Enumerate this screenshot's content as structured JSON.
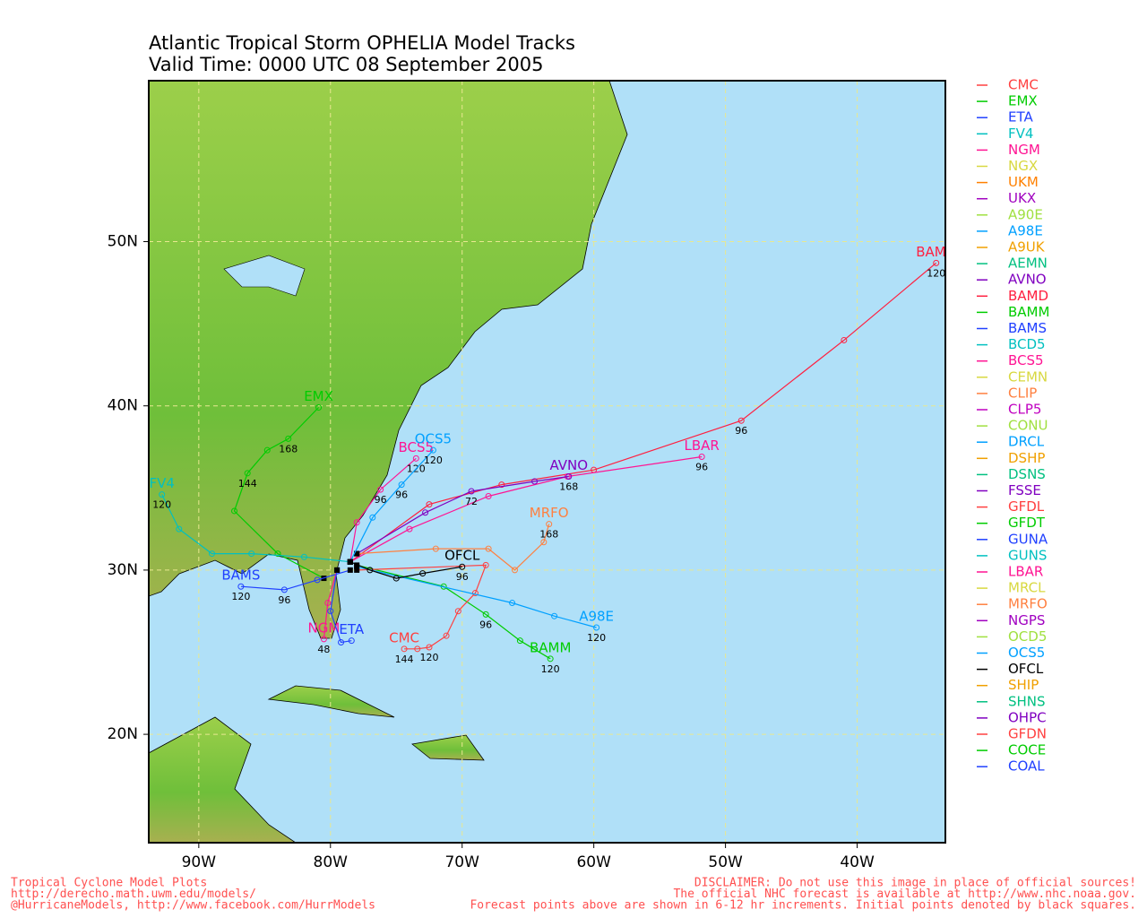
{
  "map": {
    "title": "Atlantic Tropical Storm OPHELIA Model Tracks",
    "subtitle": "Valid Time: 0000 UTC 08 September 2005",
    "xlim": [
      -93.8,
      -33.3
    ],
    "ylim": [
      13.4,
      59.8
    ],
    "xticks": [
      {
        "value": -90,
        "label": "90W"
      },
      {
        "value": -80,
        "label": "80W"
      },
      {
        "value": -70,
        "label": "70W"
      },
      {
        "value": -60,
        "label": "60W"
      },
      {
        "value": -50,
        "label": "50W"
      },
      {
        "value": -40,
        "label": "40W"
      }
    ],
    "yticks": [
      {
        "value": 20,
        "label": "20N"
      },
      {
        "value": 30,
        "label": "30N"
      },
      {
        "value": 40,
        "label": "40N"
      },
      {
        "value": 50,
        "label": "50N"
      }
    ],
    "grid": true,
    "legend": [
      {
        "name": "CMC",
        "color": "#ff4040"
      },
      {
        "name": "EMX",
        "color": "#00cc00"
      },
      {
        "name": "ETA",
        "color": "#2040ff"
      },
      {
        "name": "FV4",
        "color": "#00c0c0"
      },
      {
        "name": "NGM",
        "color": "#ff1493"
      },
      {
        "name": "NGX",
        "color": "#d8d840"
      },
      {
        "name": "UKM",
        "color": "#ff8000"
      },
      {
        "name": "UKX",
        "color": "#a000c0"
      },
      {
        "name": "A90E",
        "color": "#a0e040"
      },
      {
        "name": "A98E",
        "color": "#00a0ff"
      },
      {
        "name": "A9UK",
        "color": "#f0a000"
      },
      {
        "name": "AEMN",
        "color": "#00c080"
      },
      {
        "name": "AVNO",
        "color": "#8000c0"
      },
      {
        "name": "BAMD",
        "color": "#ff2040"
      },
      {
        "name": "BAMM",
        "color": "#00cc00"
      },
      {
        "name": "BAMS",
        "color": "#2040ff"
      },
      {
        "name": "BCD5",
        "color": "#00c0c0"
      },
      {
        "name": "BCS5",
        "color": "#ff1493"
      },
      {
        "name": "CEMN",
        "color": "#d8d840"
      },
      {
        "name": "CLIP",
        "color": "#ff8040"
      },
      {
        "name": "CLP5",
        "color": "#c000c0"
      },
      {
        "name": "CONU",
        "color": "#a0e040"
      },
      {
        "name": "DRCL",
        "color": "#00a0ff"
      },
      {
        "name": "DSHP",
        "color": "#f0a000"
      },
      {
        "name": "DSNS",
        "color": "#00c080"
      },
      {
        "name": "FSSE",
        "color": "#8000c0"
      },
      {
        "name": "GFDL",
        "color": "#ff4040"
      },
      {
        "name": "GFDT",
        "color": "#00cc00"
      },
      {
        "name": "GUNA",
        "color": "#2040ff"
      },
      {
        "name": "GUNS",
        "color": "#00c0c0"
      },
      {
        "name": "LBAR",
        "color": "#ff1493"
      },
      {
        "name": "MRCL",
        "color": "#d8d840"
      },
      {
        "name": "MRFO",
        "color": "#ff8040"
      },
      {
        "name": "NGPS",
        "color": "#a000c0"
      },
      {
        "name": "OCD5",
        "color": "#a0e040"
      },
      {
        "name": "OCS5",
        "color": "#00a0ff"
      },
      {
        "name": "OFCL",
        "color": "#000000"
      },
      {
        "name": "SHIP",
        "color": "#f0a000"
      },
      {
        "name": "SHNS",
        "color": "#00c080"
      },
      {
        "name": "OHPC",
        "color": "#8000c0"
      },
      {
        "name": "GFDN",
        "color": "#ff4040"
      },
      {
        "name": "COCE",
        "color": "#00cc00"
      },
      {
        "name": "COAL",
        "color": "#2040ff"
      }
    ],
    "tracks": [
      {
        "name": "BAMD",
        "color": "#ff2040",
        "lon": [
          -78.5,
          -72.5,
          -67,
          -60,
          -48.8,
          -41,
          -34
        ],
        "lat": [
          30.5,
          34,
          35.2,
          36.1,
          39.1,
          44,
          48.7
        ],
        "hours": [
          null,
          null,
          null,
          null,
          96,
          null,
          120
        ]
      },
      {
        "name": "LBAR",
        "color": "#ff1493",
        "lon": [
          -78.5,
          -74,
          -68,
          -62,
          -51.8
        ],
        "lat": [
          30.5,
          32.5,
          34.5,
          35.7,
          36.9
        ],
        "hours": [
          null,
          null,
          null,
          null,
          96
        ]
      },
      {
        "name": "EMX",
        "color": "#00cc00",
        "lon": [
          -80.5,
          -84,
          -87.3,
          -86.3,
          -84.8,
          -83.2,
          -80.9
        ],
        "lat": [
          29.5,
          31,
          33.6,
          35.9,
          37.3,
          38,
          39.9
        ],
        "hours": [
          null,
          null,
          null,
          144,
          null,
          168,
          null
        ]
      },
      {
        "name": "FV4",
        "color": "#00c0c0",
        "lon": [
          -78.5,
          -82,
          -86,
          -89,
          -91.5,
          -92.8
        ],
        "lat": [
          30.5,
          30.8,
          31,
          31,
          32.5,
          34.6
        ],
        "hours": [
          null,
          null,
          null,
          null,
          null,
          120
        ]
      },
      {
        "name": "BAMS",
        "color": "#2040ff",
        "lon": [
          -78.5,
          -81,
          -83.5,
          -86.8
        ],
        "lat": [
          30,
          29.4,
          28.8,
          29
        ],
        "hours": [
          null,
          null,
          96,
          120
        ]
      },
      {
        "name": "BAMM",
        "color": "#00cc00",
        "lon": [
          -78,
          -71.4,
          -68.2,
          -65.6,
          -63.3
        ],
        "lat": [
          30.3,
          29,
          27.3,
          25.7,
          24.6
        ],
        "hours": [
          null,
          null,
          96,
          null,
          120
        ]
      },
      {
        "name": "CMC",
        "color": "#ff4040",
        "lon": [
          -78,
          -68.2,
          -69,
          -70.3,
          -71.2,
          -72.5,
          -73.4,
          -74.4
        ],
        "lat": [
          30,
          30.3,
          28.6,
          27.5,
          26,
          25.3,
          25.2,
          25.2
        ],
        "hours": [
          null,
          null,
          null,
          null,
          null,
          120,
          null,
          144
        ]
      },
      {
        "name": "A98E",
        "color": "#00a0ff",
        "lon": [
          -78,
          -66.2,
          -63,
          -59.8
        ],
        "lat": [
          30.2,
          28,
          27.2,
          26.5
        ],
        "hours": [
          null,
          null,
          null,
          120
        ]
      },
      {
        "name": "AVNO",
        "color": "#8000c0",
        "lon": [
          -78,
          -72.8,
          -69.3,
          -64.5,
          -61.9
        ],
        "lat": [
          31,
          33.5,
          34.8,
          35.4,
          35.7
        ],
        "hours": [
          null,
          null,
          72,
          null,
          168
        ]
      },
      {
        "name": "MRFO",
        "color": "#ff8040",
        "lon": [
          -78,
          -72,
          -68,
          -66,
          -63.8,
          -63.4
        ],
        "lat": [
          31,
          31.3,
          31.3,
          30,
          31.7,
          32.8
        ],
        "hours": [
          null,
          null,
          null,
          null,
          null,
          168
        ]
      },
      {
        "name": "BCS5",
        "color": "#ff1493",
        "lon": [
          -78.5,
          -78,
          -76.2,
          -73.5
        ],
        "lat": [
          30.5,
          32.9,
          34.9,
          36.8
        ],
        "hours": [
          null,
          null,
          96,
          120
        ]
      },
      {
        "name": "OCS5",
        "color": "#00a0ff",
        "lon": [
          -78.5,
          -76.8,
          -74.6,
          -72.2
        ],
        "lat": [
          30.5,
          33.2,
          35.2,
          37.3
        ],
        "hours": [
          null,
          null,
          96,
          120
        ]
      },
      {
        "name": "NGM",
        "color": "#ff1493",
        "lon": [
          -79.5,
          -80.2,
          -80.5
        ],
        "lat": [
          30,
          28,
          25.8
        ],
        "hours": [
          null,
          null,
          48
        ]
      },
      {
        "name": "ETA",
        "color": "#2040ff",
        "lon": [
          -79.5,
          -80,
          -79.2,
          -78.4
        ],
        "lat": [
          30,
          27.5,
          25.6,
          25.7
        ],
        "hours": [
          null,
          null,
          null,
          null
        ]
      },
      {
        "name": "OFCL",
        "color": "#000000",
        "lon": [
          -78.5,
          -77,
          -75,
          -73,
          -70
        ],
        "lat": [
          30.5,
          30,
          29.5,
          29.8,
          30.2
        ],
        "hours": [
          null,
          null,
          null,
          null,
          96
        ]
      }
    ],
    "footer_left": [
      "Tropical Cyclone Model Plots",
      "http://derecho.math.uwm.edu/models/",
      "@HurricaneModels, http://www.facebook.com/HurrModels"
    ],
    "footer_right": [
      "DISCLAIMER: Do not use this image in place of official sources!",
      "The official NHC forecast is available at http://www.nhc.noaa.gov.",
      "Forecast points above are shown in 6-12 hr increments. Initial points denoted by black squares."
    ]
  }
}
